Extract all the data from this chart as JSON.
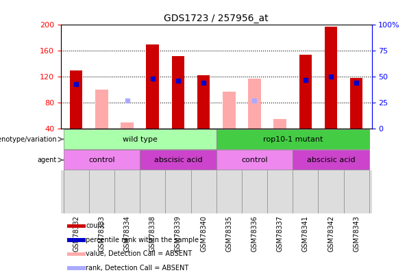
{
  "title": "GDS1723 / 257956_at",
  "samples": [
    "GSM78332",
    "GSM78333",
    "GSM78334",
    "GSM78338",
    "GSM78339",
    "GSM78340",
    "GSM78335",
    "GSM78336",
    "GSM78337",
    "GSM78341",
    "GSM78342",
    "GSM78343"
  ],
  "count_values": [
    130,
    null,
    null,
    170,
    152,
    122,
    null,
    null,
    null,
    154,
    197,
    118
  ],
  "count_absent": [
    null,
    100,
    50,
    null,
    null,
    null,
    97,
    117,
    55,
    null,
    null,
    null
  ],
  "percentile_present": [
    43,
    null,
    null,
    48,
    46,
    44,
    null,
    null,
    null,
    47,
    50,
    44
  ],
  "percentile_absent": [
    null,
    null,
    27,
    null,
    null,
    null,
    null,
    27,
    null,
    null,
    null,
    null
  ],
  "ylim_left": [
    40,
    200
  ],
  "ylim_right": [
    0,
    100
  ],
  "yticks_left": [
    40,
    80,
    120,
    160,
    200
  ],
  "yticks_right": [
    0,
    25,
    50,
    75,
    100
  ],
  "bar_width": 0.5,
  "count_color": "#CC0000",
  "absent_color": "#FFAAAA",
  "percentile_color": "#0000CC",
  "percentile_absent_color": "#AAAAFF",
  "genotype_groups": [
    {
      "label": "wild type",
      "start": 0,
      "end": 6,
      "color": "#AAFFAA"
    },
    {
      "label": "rop10-1 mutant",
      "start": 6,
      "end": 12,
      "color": "#44CC44"
    }
  ],
  "agent_groups": [
    {
      "label": "control",
      "start": 0,
      "end": 3,
      "color": "#EE88EE"
    },
    {
      "label": "abscisic acid",
      "start": 3,
      "end": 6,
      "color": "#CC44CC"
    },
    {
      "label": "control",
      "start": 6,
      "end": 9,
      "color": "#EE88EE"
    },
    {
      "label": "abscisic acid",
      "start": 9,
      "end": 12,
      "color": "#CC44CC"
    }
  ],
  "legend_items": [
    {
      "label": "count",
      "color": "#CC0000"
    },
    {
      "label": "percentile rank within the sample",
      "color": "#0000CC"
    },
    {
      "label": "value, Detection Call = ABSENT",
      "color": "#FFAAAA"
    },
    {
      "label": "rank, Detection Call = ABSENT",
      "color": "#AAAAFF"
    }
  ],
  "genotype_label": "genotype/variation",
  "agent_label": "agent",
  "background_color": "#FFFFFF",
  "tick_bg_color": "#DDDDDD"
}
